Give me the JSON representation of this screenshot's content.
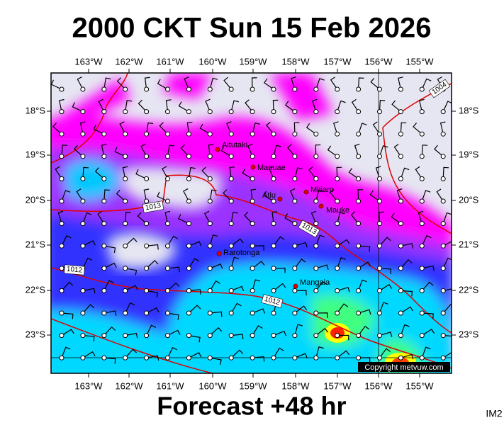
{
  "title": "2000 CKT Sun 15 Feb 2026",
  "footer": "Forecast +48 hr",
  "corner_label": "IM2",
  "copyright": "Copyright metvuw.com",
  "lon_labels": [
    "163°W",
    "162°W",
    "161°W",
    "160°W",
    "159°W",
    "158°W",
    "157°W",
    "156°W",
    "155°W"
  ],
  "lat_labels": [
    "18°S",
    "19°S",
    "20°S",
    "21°S",
    "22°S",
    "23°S"
  ],
  "places": [
    {
      "name": "Aitutaki"
    },
    {
      "name": "Manuae"
    },
    {
      "name": "Atiu"
    },
    {
      "name": "Mitiaro"
    },
    {
      "name": "Mauke"
    },
    {
      "name": "Rarotonga"
    },
    {
      "name": "Mangaia"
    }
  ],
  "isobar_labels": [
    "1004",
    "1013",
    "1013",
    "1012",
    "1012"
  ]
}
